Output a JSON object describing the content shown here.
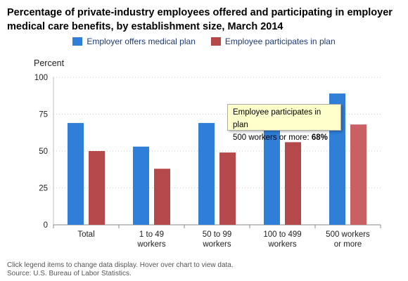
{
  "title": "Percentage of private-industry employees offered and participating in employer medical care benefits, by establishment size, March 2014",
  "notes": {
    "line1": "Click legend items to change data display. Hover over chart to view data.",
    "line2": "Source: U.S. Bureau of Labor Statistics."
  },
  "tooltip": {
    "series": "Employee participates in plan",
    "category": "500 workers or more:",
    "value": "68%"
  },
  "chart_data": {
    "type": "bar",
    "title": "Percentage of private-industry employees offered and participating in employer medical care benefits, by establishment size, March 2014",
    "ylabel": "Percent",
    "xlabel": "",
    "ylim": [
      0,
      100
    ],
    "yticks": [
      0,
      25,
      50,
      75,
      100
    ],
    "grid": true,
    "legend_position": "top-right",
    "categories": [
      [
        "Total"
      ],
      [
        "1 to 49",
        "workers"
      ],
      [
        "50 to 99",
        "workers"
      ],
      [
        "100 to 499",
        "workers"
      ],
      [
        "500 workers",
        "or more"
      ]
    ],
    "series": [
      {
        "name": "Employer offers medical plan",
        "color": "#2f7ed8",
        "values": [
          69,
          53,
          69,
          64,
          89
        ]
      },
      {
        "name": "Employee participates in plan",
        "color": "#b5484b",
        "values": [
          50,
          38,
          49,
          56,
          68
        ]
      }
    ],
    "highlight": {
      "series": 1,
      "index": 4,
      "color": "#c96164"
    }
  }
}
